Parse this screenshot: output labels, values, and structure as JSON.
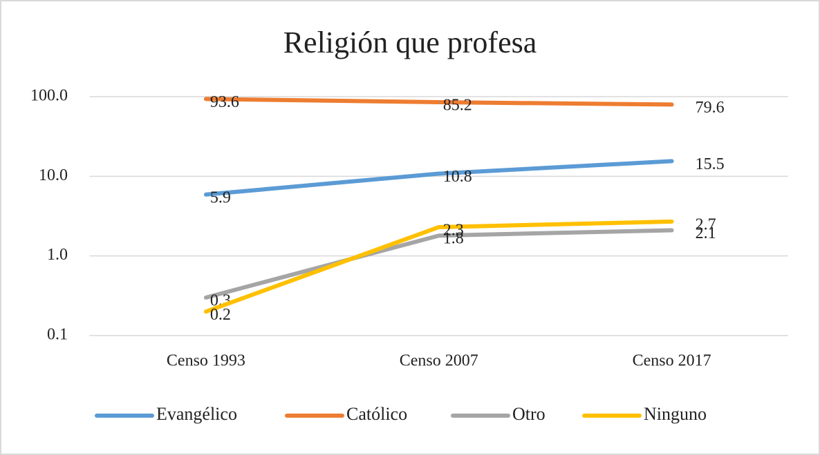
{
  "chart_data": {
    "type": "line",
    "title": "Religión que profesa",
    "categories": [
      "Censo 1993",
      "Censo 2007",
      "Censo 2017"
    ],
    "series": [
      {
        "name": "Evangélico",
        "color": "#5b9bd5",
        "values": [
          5.9,
          10.8,
          15.5
        ]
      },
      {
        "name": "Católico",
        "color": "#ed7d31",
        "values": [
          93.6,
          85.2,
          79.6
        ]
      },
      {
        "name": "Otro",
        "color": "#a5a5a5",
        "values": [
          0.3,
          1.8,
          2.1
        ]
      },
      {
        "name": "Ninguno",
        "color": "#ffc000",
        "values": [
          0.2,
          2.3,
          2.7
        ]
      }
    ],
    "log_scale": true,
    "ylim": [
      0.1,
      100
    ],
    "yticks": [
      {
        "value": 0.1,
        "label": "0.1"
      },
      {
        "value": 1,
        "label": "1.0"
      },
      {
        "value": 10,
        "label": "10.0"
      },
      {
        "value": 100,
        "label": "100.0"
      }
    ],
    "grid": true,
    "legend": "bottom"
  }
}
